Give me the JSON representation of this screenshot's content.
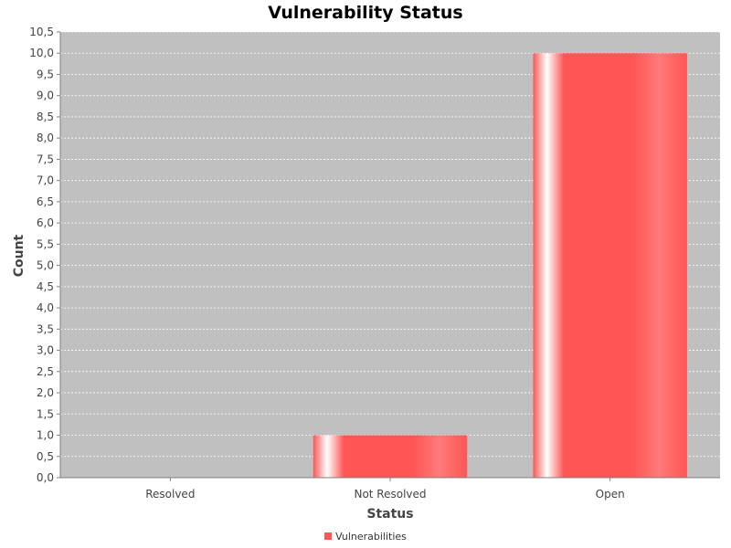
{
  "chart_data": {
    "type": "bar",
    "title": "Vulnerability Status",
    "xlabel": "Status",
    "ylabel": "Count",
    "categories": [
      "Resolved",
      "Not Resolved",
      "Open"
    ],
    "series": [
      {
        "name": "Vulnerabilities",
        "values": [
          0,
          1,
          10
        ],
        "color": "#ff5555"
      }
    ],
    "ylim": [
      0,
      10.5
    ],
    "y_ticks": [
      "0,0",
      "0,5",
      "1,0",
      "1,5",
      "2,0",
      "2,5",
      "3,0",
      "3,5",
      "4,0",
      "4,5",
      "5,0",
      "5,5",
      "6,0",
      "6,5",
      "7,0",
      "7,5",
      "8,0",
      "8,5",
      "9,0",
      "9,5",
      "10,0",
      "10,5"
    ],
    "grid": true,
    "legend_position": "bottom",
    "plot_background": "#c0c0c0"
  }
}
